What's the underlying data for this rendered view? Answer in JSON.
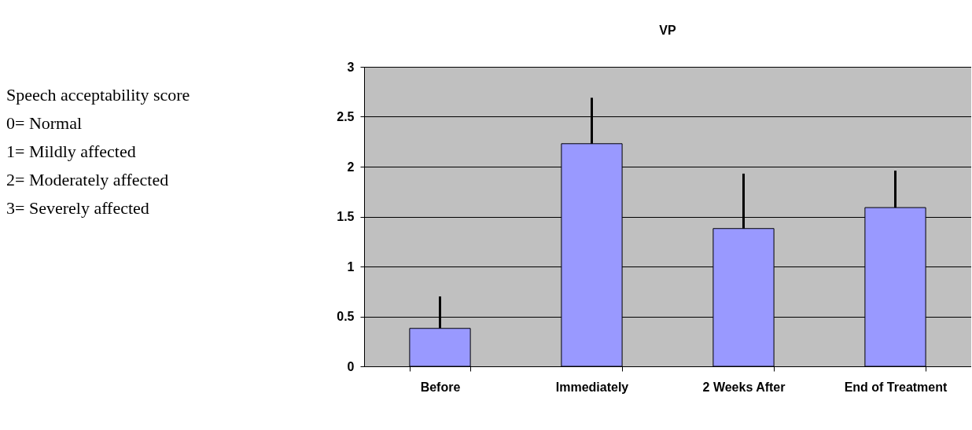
{
  "chart_data": {
    "type": "bar",
    "title": "VP",
    "categories": [
      "Before",
      "Immediately",
      "2 Weeks After",
      "End of Treatment"
    ],
    "values": [
      0.38,
      2.23,
      1.38,
      1.59
    ],
    "errors": [
      [
        0.38,
        0.7
      ],
      [
        2.23,
        2.69
      ],
      [
        1.38,
        1.93
      ],
      [
        1.59,
        1.96
      ]
    ],
    "color": "#9999ff",
    "ylim": [
      0,
      3
    ],
    "yticks": [
      0,
      0.5,
      1,
      1.5,
      2,
      2.5,
      3
    ],
    "grid": "y",
    "annotations": [
      "Speech acceptability score",
      "0= Normal",
      "1= Mildly affected",
      "2= Moderately affected",
      "3= Severely affected"
    ]
  }
}
